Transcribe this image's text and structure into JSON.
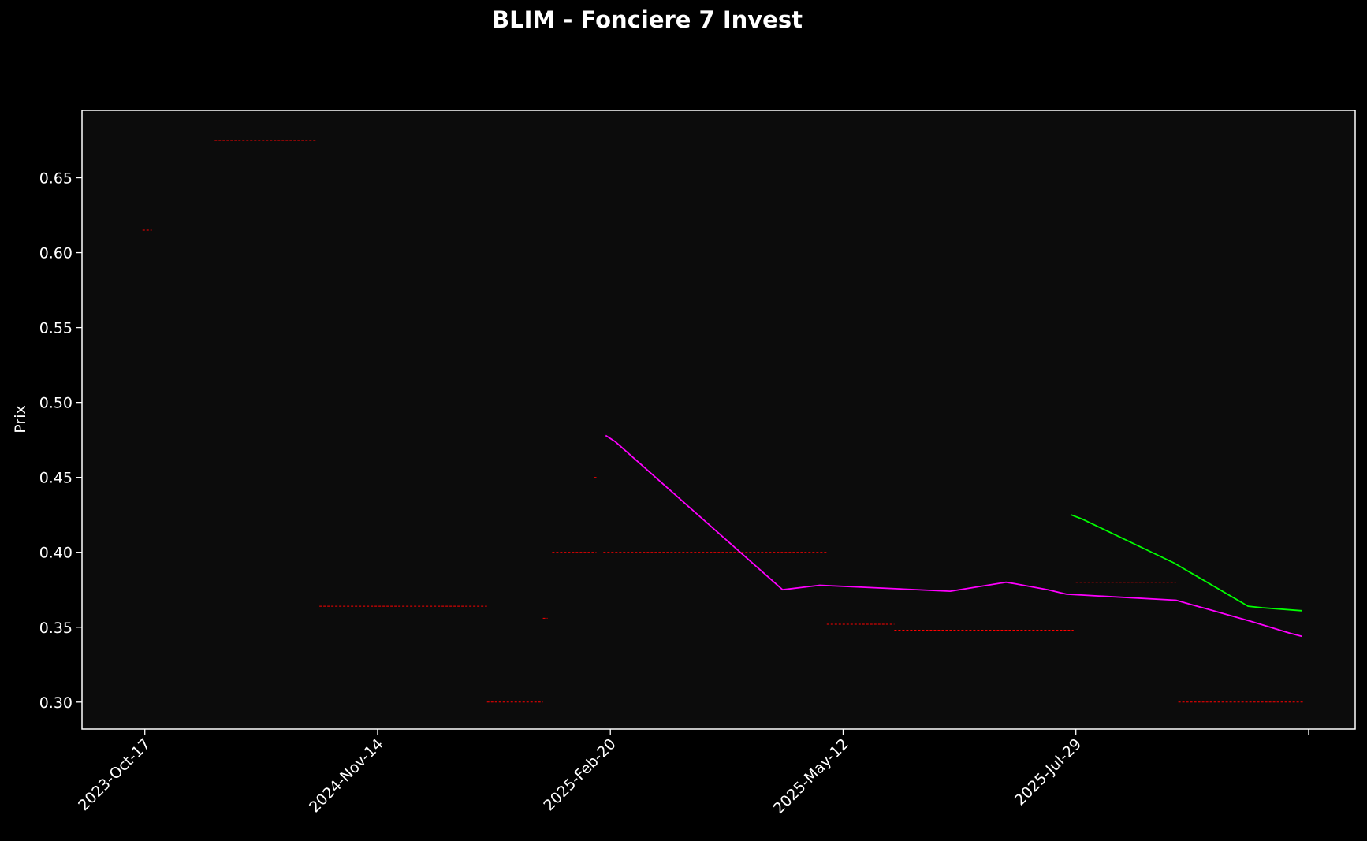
{
  "chart_data": {
    "type": "line",
    "title": "BLIM - Fonciere 7 Invest",
    "xlabel": "",
    "ylabel": "Prix",
    "ylim": [
      0.282,
      0.695
    ],
    "yticks": [
      0.3,
      0.35,
      0.4,
      0.45,
      0.5,
      0.55,
      0.6,
      0.65
    ],
    "xlim": [
      -0.27,
      5.2
    ],
    "xticks": [
      {
        "pos": 0,
        "label": "2023-Oct-17"
      },
      {
        "pos": 1,
        "label": "2024-Nov-14"
      },
      {
        "pos": 2,
        "label": "2025-Feb-20"
      },
      {
        "pos": 3,
        "label": "2025-May-12"
      },
      {
        "pos": 4,
        "label": "2025-Jul-29"
      },
      {
        "pos": 5,
        "label": ""
      }
    ],
    "grid": false,
    "colors": {
      "background": "#000000",
      "plot_area": "#0c0c0c",
      "axes": "#ffffff",
      "levels": "#ff0000",
      "magenta_series": "#ff00ff",
      "green_series": "#00ff00"
    },
    "series": [
      {
        "color": "#ff00ff",
        "points": [
          [
            1.98,
            0.478
          ],
          [
            2.02,
            0.474
          ],
          [
            2.74,
            0.375
          ],
          [
            2.9,
            0.378
          ],
          [
            3.46,
            0.374
          ],
          [
            3.7,
            0.38
          ],
          [
            3.74,
            0.379
          ],
          [
            3.88,
            0.375
          ],
          [
            3.96,
            0.372
          ],
          [
            4.43,
            0.368
          ],
          [
            4.75,
            0.354
          ],
          [
            4.92,
            0.346
          ],
          [
            4.97,
            0.344
          ]
        ]
      },
      {
        "color": "#00ff00",
        "points": [
          [
            3.98,
            0.425
          ],
          [
            4.03,
            0.422
          ],
          [
            4.42,
            0.393
          ],
          [
            4.74,
            0.364
          ],
          [
            4.8,
            0.363
          ],
          [
            4.97,
            0.361
          ]
        ]
      }
    ],
    "levels": [
      {
        "x0": 0.3,
        "x1": 0.74,
        "y": 0.675
      },
      {
        "x0": -0.01,
        "x1": 0.03,
        "y": 0.615
      },
      {
        "x0": 0.75,
        "x1": 1.47,
        "y": 0.364
      },
      {
        "x0": 1.47,
        "x1": 1.71,
        "y": 0.3
      },
      {
        "x0": 1.71,
        "x1": 1.73,
        "y": 0.356
      },
      {
        "x0": 1.75,
        "x1": 1.94,
        "y": 0.4
      },
      {
        "x0": 1.93,
        "x1": 1.94,
        "y": 0.45
      },
      {
        "x0": 1.97,
        "x1": 2.93,
        "y": 0.4
      },
      {
        "x0": 2.93,
        "x1": 3.22,
        "y": 0.352
      },
      {
        "x0": 3.22,
        "x1": 3.99,
        "y": 0.348
      },
      {
        "x0": 4.0,
        "x1": 4.43,
        "y": 0.38
      },
      {
        "x0": 4.44,
        "x1": 4.98,
        "y": 0.3
      }
    ]
  }
}
